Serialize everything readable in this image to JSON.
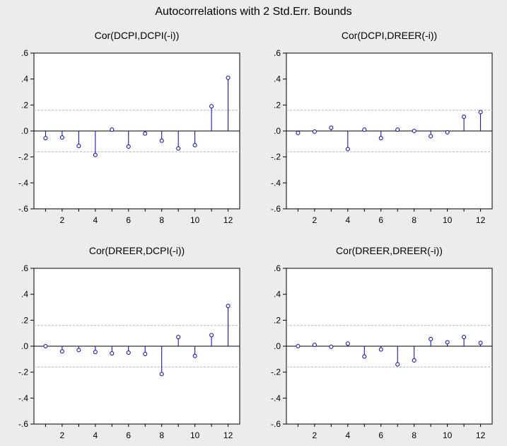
{
  "figure": {
    "title": "Autocorrelations with 2 Std.Err. Bounds"
  },
  "colors": {
    "stem": "#0000cc",
    "marker_fill": "#ffffff",
    "bound": "#b8b8b8",
    "zero": "#000000",
    "plot_bg": "#ffffff",
    "window_bg": "#ececec"
  },
  "chart_data": [
    {
      "type": "scatter",
      "style": "stem",
      "title": "Cor(DCPI,DCPI(-i))",
      "x": [
        1,
        2,
        3,
        4,
        5,
        6,
        7,
        8,
        9,
        10,
        11,
        12
      ],
      "values": [
        -0.055,
        -0.05,
        -0.115,
        -0.185,
        0.01,
        -0.12,
        -0.02,
        -0.075,
        -0.135,
        -0.11,
        0.19,
        0.41
      ],
      "bounds": [
        0.16,
        -0.16
      ],
      "xlim": [
        0.3,
        12.7
      ],
      "ylim": [
        -0.6,
        0.6
      ],
      "xticks": [
        "2",
        "4",
        "6",
        "8",
        "10",
        "12"
      ],
      "yticks": [
        ".6",
        ".4",
        ".2",
        ".0",
        "-.2",
        "-.4",
        "-.6"
      ],
      "grid": false
    },
    {
      "type": "scatter",
      "style": "stem",
      "title": "Cor(DCPI,DREER(-i))",
      "x": [
        1,
        2,
        3,
        4,
        5,
        6,
        7,
        8,
        9,
        10,
        11,
        12
      ],
      "values": [
        -0.015,
        -0.005,
        0.025,
        -0.14,
        0.01,
        -0.055,
        0.01,
        0.0,
        -0.04,
        -0.01,
        0.11,
        0.145
      ],
      "bounds": [
        0.16,
        -0.16
      ],
      "xlim": [
        0.3,
        12.7
      ],
      "ylim": [
        -0.6,
        0.6
      ],
      "xticks": [
        "2",
        "4",
        "6",
        "8",
        "10",
        "12"
      ],
      "yticks": [
        ".6",
        ".4",
        ".2",
        ".0",
        "-.2",
        "-.4",
        "-.6"
      ],
      "grid": false
    },
    {
      "type": "scatter",
      "style": "stem",
      "title": "Cor(DREER,DCPI(-i))",
      "x": [
        1,
        2,
        3,
        4,
        5,
        6,
        7,
        8,
        9,
        10,
        11,
        12
      ],
      "values": [
        0.0,
        -0.04,
        -0.03,
        -0.045,
        -0.055,
        -0.05,
        -0.06,
        -0.215,
        0.07,
        -0.075,
        0.085,
        0.31
      ],
      "bounds": [
        0.16,
        -0.16
      ],
      "xlim": [
        0.3,
        12.7
      ],
      "ylim": [
        -0.6,
        0.6
      ],
      "xticks": [
        "2",
        "4",
        "6",
        "8",
        "10",
        "12"
      ],
      "yticks": [
        ".6",
        ".4",
        ".2",
        ".0",
        "-.2",
        "-.4",
        "-.6"
      ],
      "grid": false
    },
    {
      "type": "scatter",
      "style": "stem",
      "title": "Cor(DREER,DREER(-i))",
      "x": [
        1,
        2,
        3,
        4,
        5,
        6,
        7,
        8,
        9,
        10,
        11,
        12
      ],
      "values": [
        0.0,
        0.01,
        -0.005,
        0.02,
        -0.08,
        -0.025,
        -0.14,
        -0.11,
        0.055,
        0.03,
        0.07,
        0.025
      ],
      "bounds": [
        0.16,
        -0.16
      ],
      "xlim": [
        0.3,
        12.7
      ],
      "ylim": [
        -0.6,
        0.6
      ],
      "xticks": [
        "2",
        "4",
        "6",
        "8",
        "10",
        "12"
      ],
      "yticks": [
        ".6",
        ".4",
        ".2",
        ".0",
        "-.2",
        "-.4",
        "-.6"
      ],
      "grid": false
    }
  ]
}
